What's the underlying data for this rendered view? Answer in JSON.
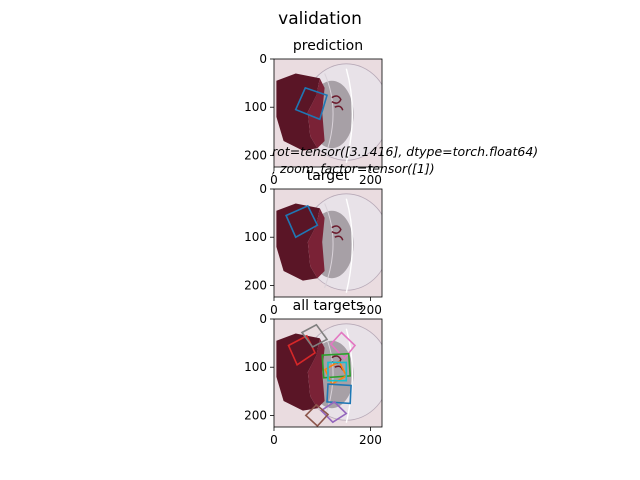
{
  "figure": {
    "title": "validation",
    "annotation_line1": "rot=tensor([3.1416], dtype=torch.float64)",
    "annotation_line2": ", zoom_factor=tensor([1])"
  },
  "colors": {
    "tab_blue": "#1f77b4",
    "tab_orange": "#ff7f0e",
    "tab_green": "#2ca02c",
    "tab_red": "#d62728",
    "tab_purple": "#9467bd",
    "tab_brown": "#8c564b",
    "tab_pink": "#e377c2",
    "tab_gray": "#7f7f7f",
    "tab_cyan": "#17becf",
    "cap_maroon": "#5a1526",
    "cap_white": "#e8e2e8",
    "background_pink": "#eadce0"
  },
  "chart_data": [
    {
      "type": "image-with-boxes",
      "title": "prediction",
      "xlim": [
        0,
        224
      ],
      "ylim": [
        224,
        0
      ],
      "xticks": [
        0,
        200
      ],
      "yticks": [
        0,
        100,
        200
      ],
      "image": "baseball-cap-icon",
      "boxes": [
        {
          "color": "tab_blue",
          "points": [
            [
              45,
              105
            ],
            [
              65,
              60
            ],
            [
              110,
              75
            ],
            [
              95,
              125
            ]
          ]
        }
      ]
    },
    {
      "type": "image-with-boxes",
      "title": "target",
      "xlim": [
        0,
        224
      ],
      "ylim": [
        224,
        0
      ],
      "xticks": [
        0,
        200
      ],
      "yticks": [
        0,
        100,
        200
      ],
      "image": "baseball-cap-icon",
      "boxes": [
        {
          "color": "tab_blue",
          "points": [
            [
              25,
              55
            ],
            [
              70,
              35
            ],
            [
              90,
              75
            ],
            [
              45,
              100
            ]
          ]
        }
      ]
    },
    {
      "type": "image-with-boxes",
      "title": "all targets",
      "xlim": [
        0,
        224
      ],
      "ylim": [
        224,
        0
      ],
      "xticks": [
        0,
        200
      ],
      "yticks": [
        0,
        100,
        200
      ],
      "image": "baseball-cap-icon",
      "boxes": [
        {
          "color": "tab_red",
          "points": [
            [
              30,
              55
            ],
            [
              68,
              35
            ],
            [
              85,
              70
            ],
            [
              48,
              95
            ]
          ]
        },
        {
          "color": "tab_gray",
          "points": [
            [
              58,
              28
            ],
            [
              88,
              12
            ],
            [
              110,
              42
            ],
            [
              80,
              58
            ]
          ]
        },
        {
          "color": "tab_pink",
          "points": [
            [
              118,
              52
            ],
            [
              140,
              28
            ],
            [
              168,
              55
            ],
            [
              146,
              82
            ]
          ]
        },
        {
          "color": "tab_green",
          "points": [
            [
              100,
              75
            ],
            [
              155,
              72
            ],
            [
              158,
              118
            ],
            [
              103,
              122
            ]
          ]
        },
        {
          "color": "tab_orange",
          "points": [
            [
              106,
              105
            ],
            [
              135,
              88
            ],
            [
              150,
              118
            ],
            [
              120,
              135
            ]
          ]
        },
        {
          "color": "tab_cyan",
          "points": [
            [
              112,
              90
            ],
            [
              150,
              90
            ],
            [
              150,
              128
            ],
            [
              112,
              128
            ]
          ]
        },
        {
          "color": "tab_blue",
          "points": [
            [
              112,
              135
            ],
            [
              160,
              138
            ],
            [
              158,
              175
            ],
            [
              110,
              172
            ]
          ]
        },
        {
          "color": "tab_purple",
          "points": [
            [
              98,
              190
            ],
            [
              125,
              172
            ],
            [
              150,
              196
            ],
            [
              122,
              214
            ]
          ]
        },
        {
          "color": "tab_brown",
          "points": [
            [
              66,
              200
            ],
            [
              88,
              178
            ],
            [
              112,
              198
            ],
            [
              90,
              222
            ]
          ]
        }
      ]
    }
  ]
}
